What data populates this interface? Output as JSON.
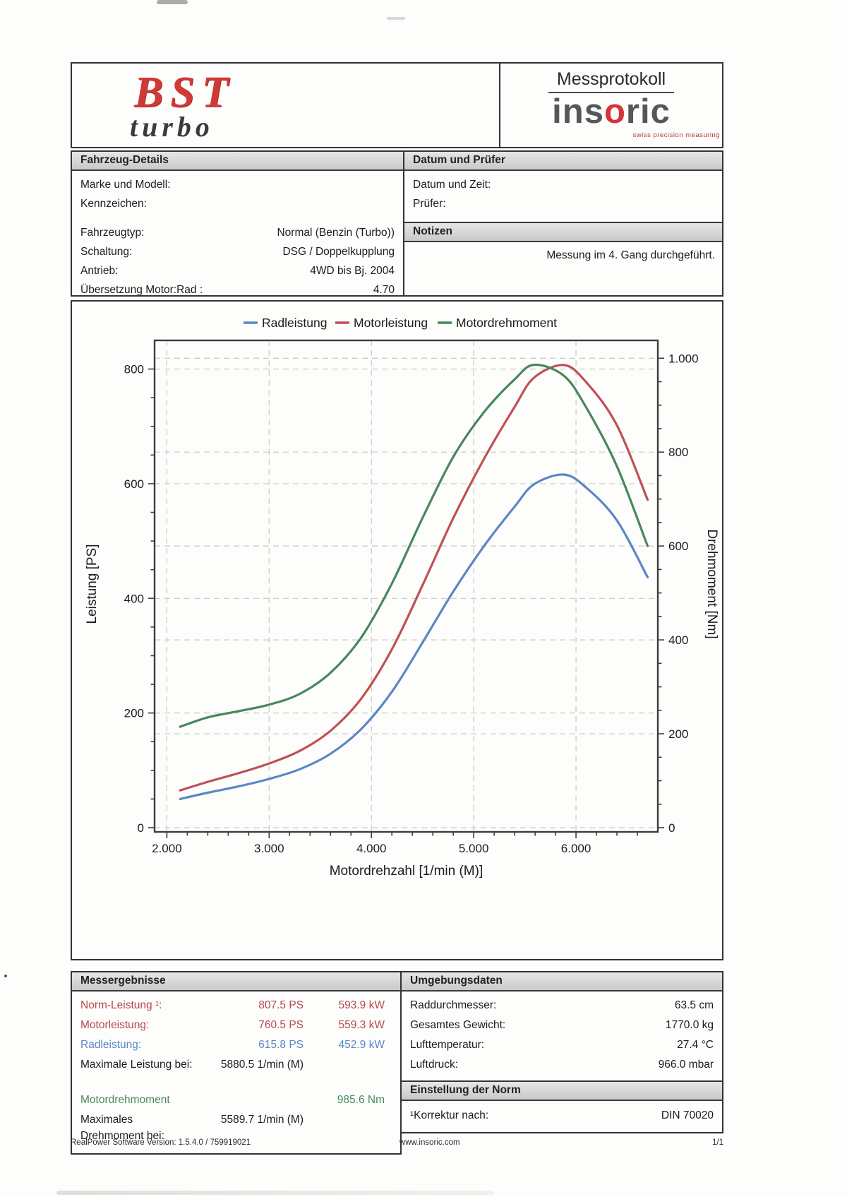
{
  "header": {
    "logo_line1": "BST",
    "logo_line2": "turbo",
    "protocol_title": "Messprotokoll",
    "brand": {
      "pre": "ins",
      "o": "o",
      "post": "ric",
      "tagline": "swiss precision measuring"
    }
  },
  "vehicle_details": {
    "header": "Fahrzeug-Details",
    "rows": [
      {
        "label": "Marke und Modell:",
        "value": ""
      },
      {
        "label": "Kennzeichen:",
        "value": ""
      },
      {
        "spacer": true
      },
      {
        "label": "Fahrzeugtyp:",
        "value": "Normal (Benzin (Turbo))"
      },
      {
        "label": "Schaltung:",
        "value": "DSG / Doppelkupplung"
      },
      {
        "label": "Antrieb:",
        "value": "4WD bis Bj. 2004"
      },
      {
        "label": "Übersetzung Motor:Rad :",
        "value": "4.70"
      }
    ]
  },
  "datum_pruefer": {
    "header": "Datum und Prüfer",
    "rows": [
      {
        "label": "Datum und Zeit:",
        "value": ""
      },
      {
        "label": "Prüfer:",
        "value": ""
      }
    ]
  },
  "notizen": {
    "header": "Notizen",
    "note": "Messung im 4. Gang durchgeführt."
  },
  "chart_data": {
    "type": "line",
    "title": "",
    "xlabel": "Motordrehzahl [1/min (M)]",
    "ylabel_left": "Leistung [PS]",
    "ylabel_right": "Drehmoment [Nm]",
    "grid": true,
    "legend_position": "top",
    "axes": {
      "x": {
        "min": 1880,
        "max": 6800,
        "minor_step": 200,
        "ticks": [
          {
            "v": 2000,
            "label": "2.000"
          },
          {
            "v": 3000,
            "label": "3.000"
          },
          {
            "v": 4000,
            "label": "4.000"
          },
          {
            "v": 5000,
            "label": "5.000"
          },
          {
            "v": 6000,
            "label": "6.000"
          }
        ],
        "title": "Motordrehzahl [1/min (M)]"
      },
      "left": {
        "min": 0,
        "max": 850,
        "minor_step": 50,
        "ticks": [
          {
            "v": 0,
            "label": "0"
          },
          {
            "v": 200,
            "label": "200"
          },
          {
            "v": 400,
            "label": "400"
          },
          {
            "v": 600,
            "label": "600"
          },
          {
            "v": 800,
            "label": "800"
          }
        ],
        "title": "Leistung [PS]"
      },
      "right": {
        "min": 0,
        "max": 1038,
        "minor_step": 50,
        "ticks": [
          {
            "v": 0,
            "label": "0"
          },
          {
            "v": 200,
            "label": "200"
          },
          {
            "v": 400,
            "label": "400"
          },
          {
            "v": 600,
            "label": "600"
          },
          {
            "v": 800,
            "label": "800"
          },
          {
            "v": 1000,
            "label": "1.000"
          }
        ],
        "title": "Drehmoment [Nm]"
      }
    },
    "x": [
      2130,
      2400,
      2700,
      3000,
      3300,
      3600,
      3900,
      4200,
      4500,
      4800,
      5100,
      5400,
      5590,
      5880,
      6100,
      6400,
      6700
    ],
    "series": [
      {
        "name": "Radleistung",
        "axis": "left",
        "color": "#5b87c4",
        "values": [
          50,
          61,
          72,
          85,
          102,
          129,
          172,
          237,
          323,
          412,
          491,
          560,
          599,
          616,
          593,
          536,
          437
        ]
      },
      {
        "name": "Motorleistung",
        "axis": "left",
        "color": "#bf5056",
        "values": [
          65,
          80,
          95,
          112,
          134,
          169,
          225,
          311,
          423,
          540,
          643,
          734,
          785,
          807,
          777,
          702,
          572
        ]
      },
      {
        "name": "Motordrehmoment",
        "axis": "right",
        "color": "#47875c",
        "values": [
          215,
          235,
          248,
          262,
          285,
          330,
          405,
          520,
          660,
          790,
          885,
          955,
          986,
          963,
          895,
          770,
          600
        ]
      }
    ]
  },
  "messergebnisse": {
    "header": "Messergebnisse",
    "rows": [
      {
        "label": "Norm-Leistung ¹:",
        "v1": "807.5 PS",
        "v2": "593.9 kW",
        "color": "red"
      },
      {
        "label": "Motorleistung:",
        "v1": "760.5 PS",
        "v2": "559.3 kW",
        "color": "red"
      },
      {
        "label": "Radleistung:",
        "v1": "615.8 PS",
        "v2": "452.9 kW",
        "color": "blue"
      },
      {
        "label": "Maximale Leistung bei:",
        "v1": "5880.5 1/min (M)",
        "v2": "",
        "color": "black"
      },
      {
        "spacer": true
      },
      {
        "label": "Motordrehmoment",
        "v1": "",
        "v2": "985.6 Nm",
        "color": "green"
      },
      {
        "label": "Maximales Drehmoment bei:",
        "v1": "5589.7 1/min (M)",
        "v2": "",
        "color": "black"
      }
    ]
  },
  "umgebungsdaten": {
    "header": "Umgebungsdaten",
    "rows": [
      {
        "label": "Raddurchmesser:",
        "value": "63.5 cm"
      },
      {
        "label": "Gesamtes Gewicht:",
        "value": "1770.0 kg"
      },
      {
        "label": "Lufttemperatur:",
        "value": "27.4 °C"
      },
      {
        "label": "Luftdruck:",
        "value": "966.0 mbar"
      }
    ]
  },
  "einstellung_der_norm": {
    "header": "Einstellung der Norm",
    "rows": [
      {
        "label": "¹Korrektur nach:",
        "value": "DIN 70020"
      }
    ]
  },
  "footer": {
    "software": "RealPower Software Version: 1.5.4.0 / 759919021",
    "website": "www.insoric.com",
    "page": "1/1"
  }
}
